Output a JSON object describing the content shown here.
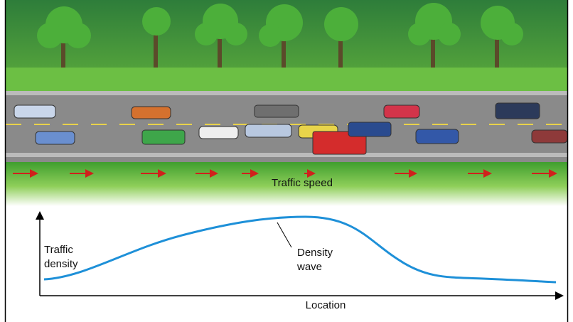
{
  "scene": {
    "speed_label": "Traffic speed"
  },
  "graph": {
    "y_axis_label": [
      "Traffic",
      "density"
    ],
    "annotation": [
      "Density",
      "wave"
    ],
    "x_axis_label": "Location"
  }
}
